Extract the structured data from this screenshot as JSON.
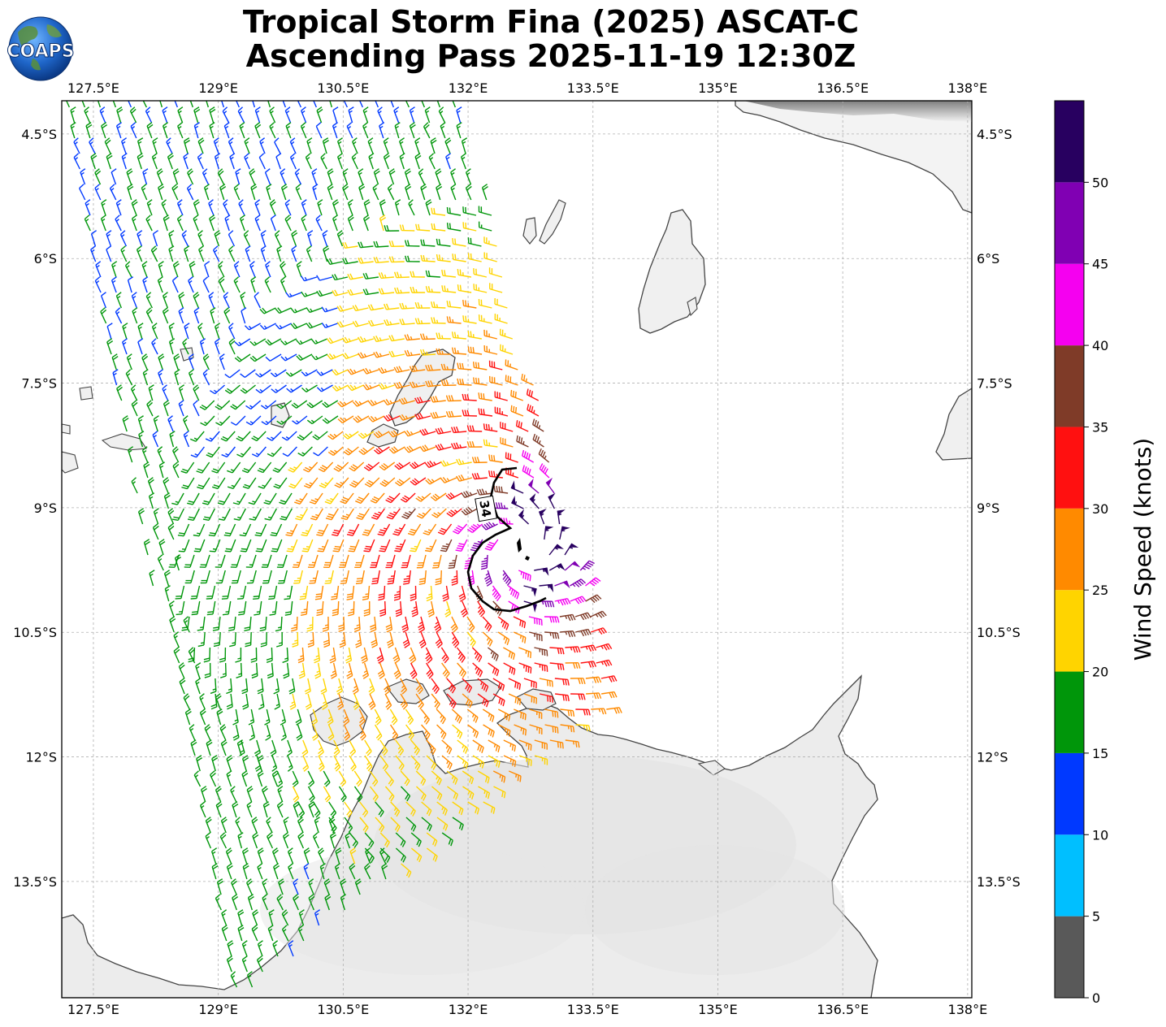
{
  "title": {
    "line1": "Tropical Storm Fina (2025) ASCAT-C",
    "line2": "Ascending Pass 2025-11-19 12:30Z"
  },
  "logo": {
    "text": "COAPS"
  },
  "map": {
    "extent": {
      "lon_min": 127.12,
      "lon_max": 138.05,
      "lat_max": -4.1,
      "lat_min": -14.9
    },
    "lon_ticks": [
      {
        "value": 127.5,
        "label": "127.5°E"
      },
      {
        "value": 129.0,
        "label": "129°E"
      },
      {
        "value": 130.5,
        "label": "130.5°E"
      },
      {
        "value": 132.0,
        "label": "132°E"
      },
      {
        "value": 133.5,
        "label": "133.5°E"
      },
      {
        "value": 135.0,
        "label": "135°E"
      },
      {
        "value": 136.5,
        "label": "136.5°E"
      },
      {
        "value": 138.0,
        "label": "138°E"
      }
    ],
    "lat_ticks": [
      {
        "value": -4.5,
        "label": "4.5°S"
      },
      {
        "value": -6.0,
        "label": "6°S"
      },
      {
        "value": -7.5,
        "label": "7.5°S"
      },
      {
        "value": -9.0,
        "label": "9°S"
      },
      {
        "value": -10.5,
        "label": "10.5°S"
      },
      {
        "value": -12.0,
        "label": "12°S"
      },
      {
        "value": -13.5,
        "label": "13.5°S"
      }
    ],
    "grid": true,
    "storm_center": {
      "lon": 132.62,
      "lat": -9.45
    },
    "contour_label": "34"
  },
  "colorbar": {
    "label": "Wind Speed (knots)",
    "min": 0,
    "max": 55,
    "bins": [
      {
        "from": 0,
        "to": 5,
        "color": "#595959"
      },
      {
        "from": 5,
        "to": 10,
        "color": "#00bfff"
      },
      {
        "from": 10,
        "to": 15,
        "color": "#0039ff"
      },
      {
        "from": 15,
        "to": 20,
        "color": "#00960a"
      },
      {
        "from": 20,
        "to": 25,
        "color": "#ffd400"
      },
      {
        "from": 25,
        "to": 30,
        "color": "#ff8a00"
      },
      {
        "from": 30,
        "to": 35,
        "color": "#ff1010"
      },
      {
        "from": 35,
        "to": 40,
        "color": "#7f3b28"
      },
      {
        "from": 40,
        "to": 45,
        "color": "#f500f0"
      },
      {
        "from": 45,
        "to": 50,
        "color": "#8000b3"
      },
      {
        "from": 50,
        "to": 55,
        "color": "#280060"
      }
    ],
    "ticks": [
      {
        "value": 0,
        "label": "0"
      },
      {
        "value": 5,
        "label": "5"
      },
      {
        "value": 10,
        "label": "10"
      },
      {
        "value": 15,
        "label": "15"
      },
      {
        "value": 20,
        "label": "20"
      },
      {
        "value": 25,
        "label": "25"
      },
      {
        "value": 30,
        "label": "30"
      },
      {
        "value": 35,
        "label": "35"
      },
      {
        "value": 40,
        "label": "40"
      },
      {
        "value": 45,
        "label": "45"
      },
      {
        "value": 50,
        "label": "50"
      }
    ]
  },
  "colors": {
    "coastline": "#444444",
    "land": "#ededed",
    "grid": "#b0b0b0",
    "contour": "#000000"
  }
}
